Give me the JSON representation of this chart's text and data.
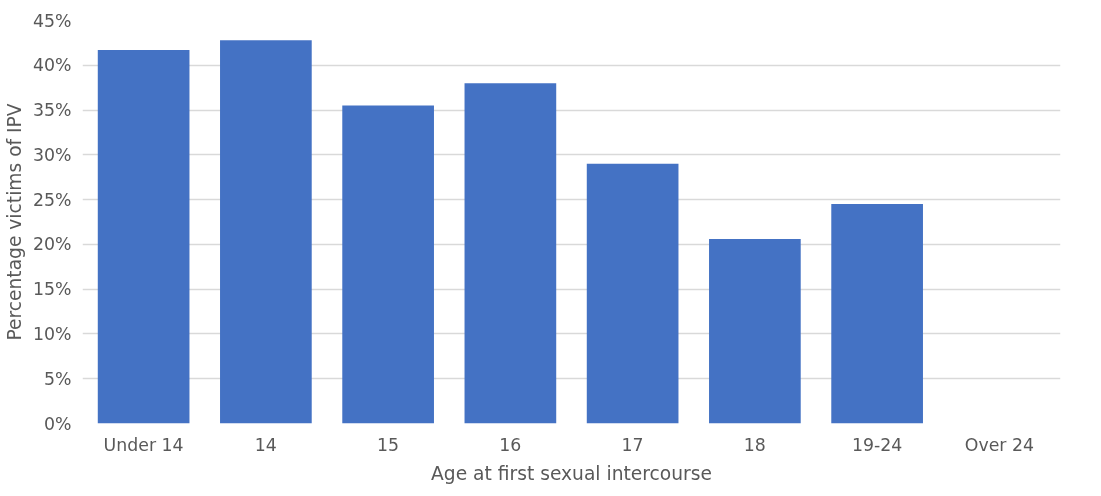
{
  "chart_data": {
    "type": "bar",
    "xlabel": "Age at first sexual intercourse",
    "ylabel": "Percentage victims of IPV",
    "categories": [
      "Under 14",
      "14",
      "15",
      "16",
      "17",
      "18",
      "19-24",
      "Over 24"
    ],
    "values": [
      41.7,
      42.8,
      35.5,
      38.0,
      29.0,
      20.6,
      24.5,
      null
    ],
    "color": "#4472c4",
    "ylim": [
      0,
      45
    ],
    "yticks": [
      {
        "value": 0,
        "label": "0%"
      },
      {
        "value": 5,
        "label": "5%"
      },
      {
        "value": 10,
        "label": "10%"
      },
      {
        "value": 15,
        "label": "15%"
      },
      {
        "value": 20,
        "label": "20%"
      },
      {
        "value": 25,
        "label": "25%"
      },
      {
        "value": 30,
        "label": "30%"
      },
      {
        "value": 35,
        "label": "35%"
      },
      {
        "value": 40,
        "label": "40%"
      },
      {
        "value": 45,
        "label": "45%"
      }
    ],
    "grid": "y"
  }
}
